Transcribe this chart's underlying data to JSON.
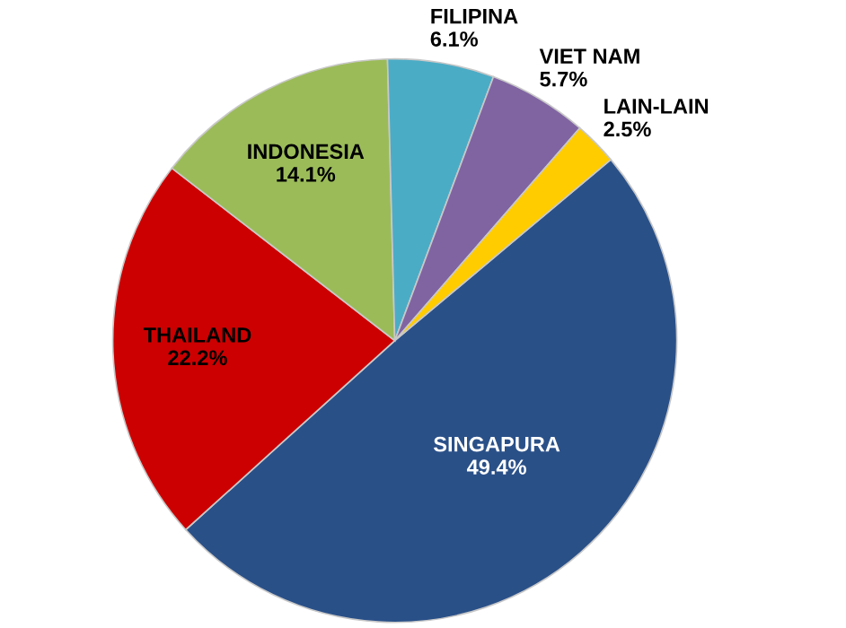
{
  "chart_data": {
    "type": "pie",
    "categories": [
      "SINGAPURA",
      "THAILAND",
      "INDONESIA",
      "FILIPINA",
      "VIET NAM",
      "LAIN-LAIN"
    ],
    "values": [
      49.4,
      22.2,
      14.1,
      6.1,
      5.7,
      2.5
    ],
    "value_labels": [
      "49.4%",
      "22.2%",
      "14.1%",
      "6.1%",
      "5.7%",
      "2.5%"
    ],
    "colors": [
      "#2a5088",
      "#cc0000",
      "#9bbb59",
      "#4bacc6",
      "#8064a2",
      "#ffcc00"
    ]
  }
}
